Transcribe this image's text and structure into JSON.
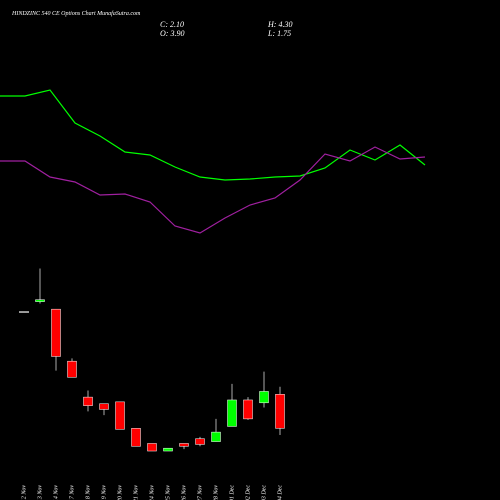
{
  "header": {
    "title": "HINDZINC 540  CE Options  Chart MunafaSutra.com",
    "close": "C: 2.10",
    "open": "O: 3.90",
    "high": "H: 4.30",
    "low": "L: 1.75"
  },
  "chart_data": [
    {
      "type": "candlestick",
      "categories": [
        "12 Nov",
        "13 Nov",
        "14 Nov",
        "17 Nov",
        "18 Nov",
        "19 Nov",
        "20 Nov",
        "21 Nov",
        "24 Nov",
        "25 Nov",
        "26 Nov",
        "27 Nov",
        "28 Nov",
        "01 Dec",
        "02 Dec",
        "03 Dec",
        "04 Dec"
      ],
      "open": [
        8.25,
        8.8,
        8.4,
        5.65,
        3.75,
        3.4,
        3.5,
        2.1,
        1.3,
        0.9,
        1.3,
        1.55,
        1.4,
        2.2,
        3.6,
        3.45,
        3.9
      ],
      "high": [
        8.25,
        10.55,
        8.4,
        5.8,
        4.1,
        3.4,
        3.5,
        2.1,
        1.3,
        1.05,
        1.3,
        1.65,
        2.6,
        4.45,
        3.75,
        5.1,
        4.3
      ],
      "low": [
        8.25,
        8.7,
        5.15,
        4.8,
        3.0,
        2.8,
        2.05,
        1.15,
        0.9,
        0.9,
        1.0,
        1.15,
        1.4,
        2.2,
        2.55,
        3.2,
        1.75
      ],
      "close": [
        8.25,
        8.9,
        5.9,
        4.8,
        3.3,
        3.1,
        2.05,
        1.15,
        0.9,
        1.05,
        1.15,
        1.25,
        1.9,
        3.6,
        2.6,
        4.05,
        2.1
      ],
      "up_color": "#00ff00",
      "down_color": "#ff0000",
      "flat_color": "#ffffff",
      "ylim": [
        0.5,
        11
      ]
    },
    {
      "type": "line",
      "series": [
        {
          "color": "#00ff00",
          "values": [
            7.7,
            7.7,
            8.0,
            6.35,
            5.7,
            4.9,
            4.75,
            4.15,
            3.65,
            3.5,
            3.55,
            3.65,
            3.7,
            4.1,
            5.0,
            4.5,
            5.25,
            4.25
          ]
        },
        {
          "color": "#a020a0",
          "values": [
            4.45,
            4.45,
            3.65,
            3.4,
            2.75,
            2.8,
            2.4,
            1.2,
            0.85,
            1.6,
            2.25,
            2.6,
            3.5,
            4.8,
            4.45,
            5.15,
            4.55,
            4.65
          ]
        }
      ],
      "ylim": [
        0,
        10
      ]
    }
  ]
}
